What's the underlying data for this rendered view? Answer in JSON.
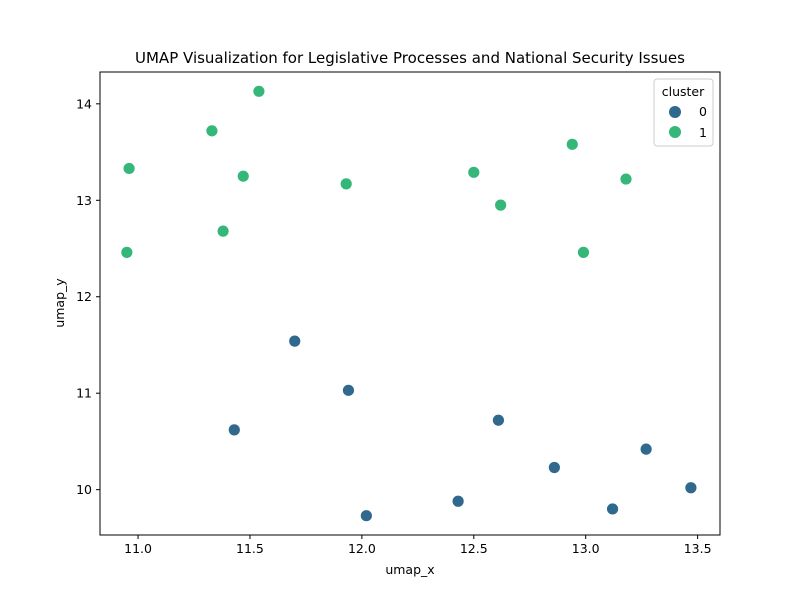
{
  "chart_data": {
    "type": "scatter",
    "title": "UMAP Visualization for Legislative Processes and National Security Issues",
    "xlabel": "umap_x",
    "ylabel": "umap_y",
    "xlim": [
      10.83,
      13.6
    ],
    "ylim": [
      9.53,
      14.33
    ],
    "xticks": [
      "11.0",
      "11.5",
      "12.0",
      "12.5",
      "13.0",
      "13.5"
    ],
    "yticks": [
      "10",
      "11",
      "12",
      "13",
      "14"
    ],
    "xtick_values": [
      11.0,
      11.5,
      12.0,
      12.5,
      13.0,
      13.5
    ],
    "ytick_values": [
      10,
      11,
      12,
      13,
      14
    ],
    "grid": false,
    "legend": {
      "title": "cluster",
      "placement": "top-right"
    },
    "series": [
      {
        "name": "0",
        "color": "#30688e",
        "points": [
          [
            11.7,
            11.54
          ],
          [
            11.94,
            11.03
          ],
          [
            11.43,
            10.62
          ],
          [
            12.61,
            10.72
          ],
          [
            12.86,
            10.23
          ],
          [
            13.27,
            10.42
          ],
          [
            13.47,
            10.02
          ],
          [
            12.43,
            9.88
          ],
          [
            13.12,
            9.8
          ],
          [
            12.02,
            9.73
          ]
        ]
      },
      {
        "name": "1",
        "color": "#35b779",
        "points": [
          [
            11.54,
            14.13
          ],
          [
            11.33,
            13.72
          ],
          [
            10.96,
            13.33
          ],
          [
            11.47,
            13.25
          ],
          [
            11.93,
            13.17
          ],
          [
            12.94,
            13.58
          ],
          [
            12.5,
            13.29
          ],
          [
            13.18,
            13.22
          ],
          [
            12.62,
            12.95
          ],
          [
            11.38,
            12.68
          ],
          [
            10.95,
            12.46
          ],
          [
            12.99,
            12.46
          ]
        ]
      }
    ]
  }
}
